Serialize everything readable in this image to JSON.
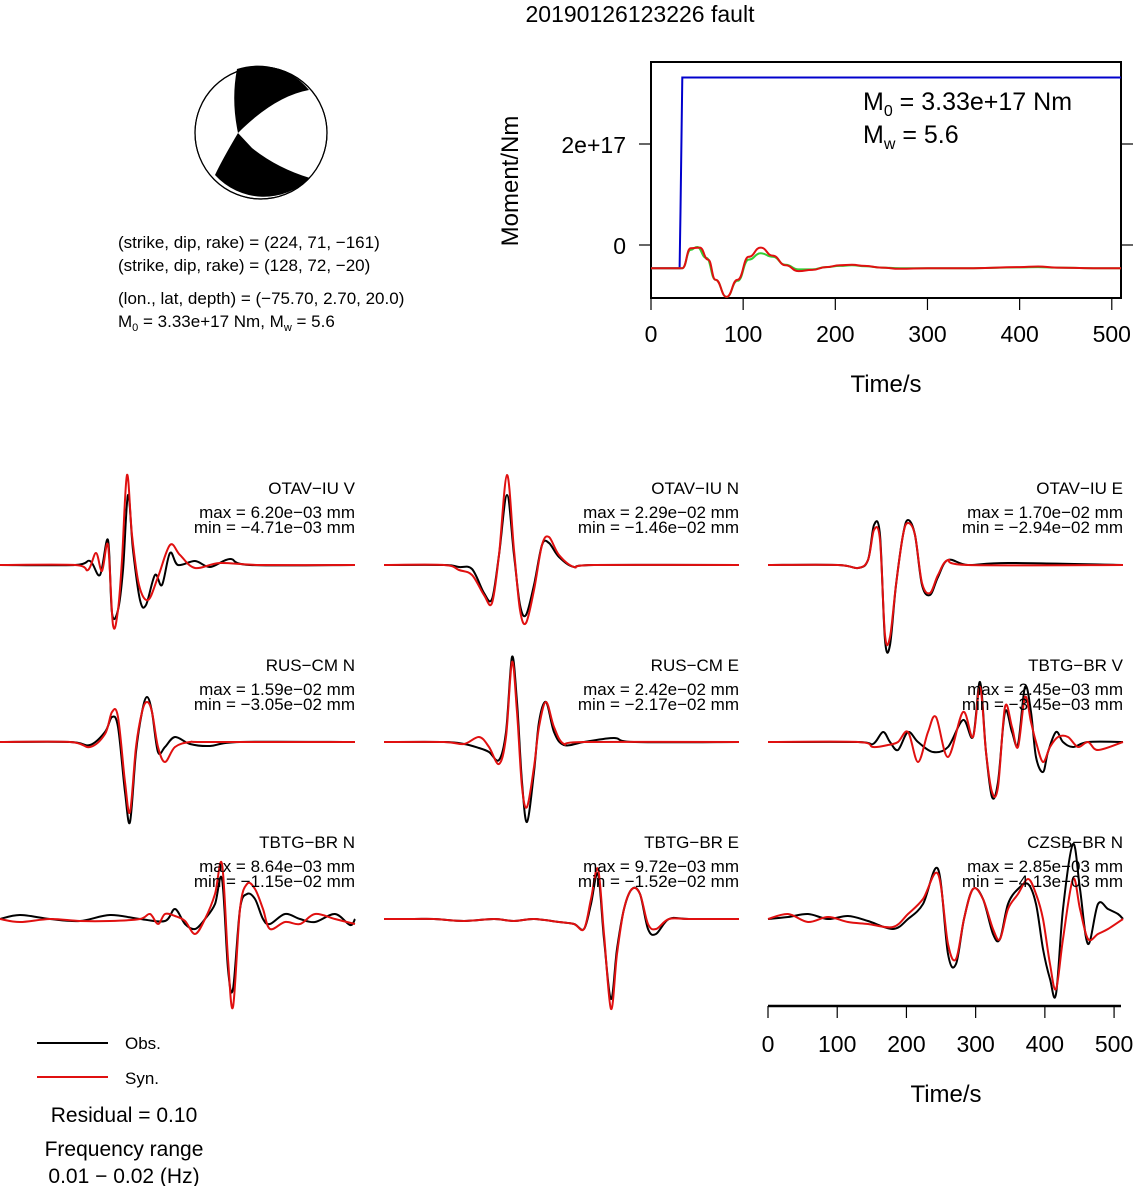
{
  "title": "20190126123226 fault",
  "mechanism": {
    "line1": "(strike, dip, rake) = (224, 71, −161)",
    "line2": "(strike, dip, rake) = (128, 72, −20)",
    "line3": "(lon., lat, depth) = (−75.70, 2.70, 20.0)",
    "line4_m0": "M",
    "line4_m0_sub": "0",
    "line4_mid": " = 3.33e+17 Nm, M",
    "line4_mw_sub": "w",
    "line4_end": " = 5.6"
  },
  "moment_panel": {
    "ylabel": "Moment/Nm",
    "xlabel": "Time/s",
    "yticks": [
      "0",
      "2e+17"
    ],
    "xticks": [
      "0",
      "100",
      "200",
      "300",
      "400",
      "500"
    ],
    "m0_label": "M",
    "m0_sub": "0",
    "m0_value": " = 3.33e+17 Nm",
    "mw_label": "M",
    "mw_sub": "w",
    "mw_value": " = 5.6"
  },
  "legend": {
    "obs": "Obs.",
    "syn": "Syn.",
    "residual": "Residual = 0.10",
    "freq_title": "Frequency range",
    "freq_range": "0.01 − 0.02 (Hz)"
  },
  "wave_axis": {
    "xlabel": "Time/s",
    "xticks": [
      "0",
      "100",
      "200",
      "300",
      "400",
      "500"
    ]
  },
  "colors": {
    "obs": "#000000",
    "syn": "#e01010",
    "moment": "#0000cc",
    "smooth": "#33cc33"
  },
  "chart_data": [
    {
      "type": "line",
      "title": "",
      "xlabel": "Time/s",
      "ylabel": "Moment/Nm",
      "xlim": [
        0,
        510
      ],
      "ylim": [
        -5.2e+16,
        3.6e+17
      ],
      "series": [
        {
          "name": "",
          "color": "#0000cc",
          "x": [
            0,
            31,
            32,
            34,
            510
          ],
          "y": [
            0,
            0,
            1e+17,
            3.33e+17,
            3.33e+17
          ]
        },
        {
          "name": "",
          "color": "#e01010",
          "x": [
            0,
            20,
            34,
            43,
            53,
            62,
            70,
            82,
            94,
            106,
            119,
            132,
            146,
            160,
            175,
            190,
            205,
            218,
            232,
            250,
            270,
            300,
            350,
            400,
            420,
            440,
            480,
            510
          ],
          "y": [
            0,
            0,
            0,
            3.5e+16,
            3.6e+16,
            1.5e+16,
            -2e+16,
            -5e+16,
            -2e+16,
            2e+16,
            3.6e+16,
            2.2e+16,
            5000000000000000.0,
            -5000000000000000.0,
            -3000000000000000.0,
            2000000000000000.0,
            5000000000000000.0,
            6000000000000000.0,
            4000000000000000.0,
            1000000000000000.0,
            -1000000000000000.0,
            0,
            0,
            2000000000000000.0,
            3000000000000000.0,
            1000000000000000.0,
            0,
            0
          ]
        },
        {
          "name": "",
          "color": "#33cc33",
          "x": [
            0,
            20,
            34,
            43,
            50,
            60,
            70,
            82,
            94,
            106,
            119,
            132,
            146,
            160,
            175,
            190,
            205,
            218,
            232,
            250,
            270,
            300,
            350,
            400,
            420,
            440,
            480,
            510
          ],
          "y": [
            0,
            0,
            0,
            3.2e+16,
            3.7e+16,
            1.8e+16,
            -2e+16,
            -5e+16,
            -2.2e+16,
            1.5e+16,
            2.6e+16,
            2e+16,
            6000000000000000.0,
            -2000000000000000.0,
            -2000000000000000.0,
            2000000000000000.0,
            4000000000000000.0,
            5000000000000000.0,
            3500000000000000.0,
            1000000000000000.0,
            0,
            0,
            0,
            1500000000000000.0,
            2000000000000000.0,
            1000000000000000.0,
            0,
            0
          ]
        }
      ]
    },
    {
      "type": "line",
      "xlabel": "Time/s",
      "xlim": [
        0,
        510
      ],
      "panels": [
        {
          "station": "OTAV−IU V",
          "max": "max = 6.20e−03 mm",
          "min": "min = −4.71e−03 mm"
        },
        {
          "station": "OTAV−IU N",
          "max": "max = 2.29e−02 mm",
          "min": "min = −1.46e−02 mm"
        },
        {
          "station": "OTAV−IU E",
          "max": "max = 1.70e−02 mm",
          "min": "min = −2.94e−02 mm"
        },
        {
          "station": "RUS−CM N",
          "max": "max = 1.59e−02 mm",
          "min": "min = −3.05e−02 mm"
        },
        {
          "station": "RUS−CM E",
          "max": "max = 2.42e−02 mm",
          "min": "min = −2.17e−02 mm"
        },
        {
          "station": "TBTG−BR V",
          "max": "max = 2.45e−03 mm",
          "min": "min = −3.45e−03 mm"
        },
        {
          "station": "TBTG−BR N",
          "max": "max = 8.64e−03 mm",
          "min": "min = −1.15e−02 mm"
        },
        {
          "station": "TBTG−BR E",
          "max": "max = 9.72e−03 mm",
          "min": "min = −1.52e−02 mm"
        },
        {
          "station": "CZSB−BR N",
          "max": "max = 2.85e−03 mm",
          "min": "min = −4.13e−03 mm"
        }
      ]
    }
  ]
}
